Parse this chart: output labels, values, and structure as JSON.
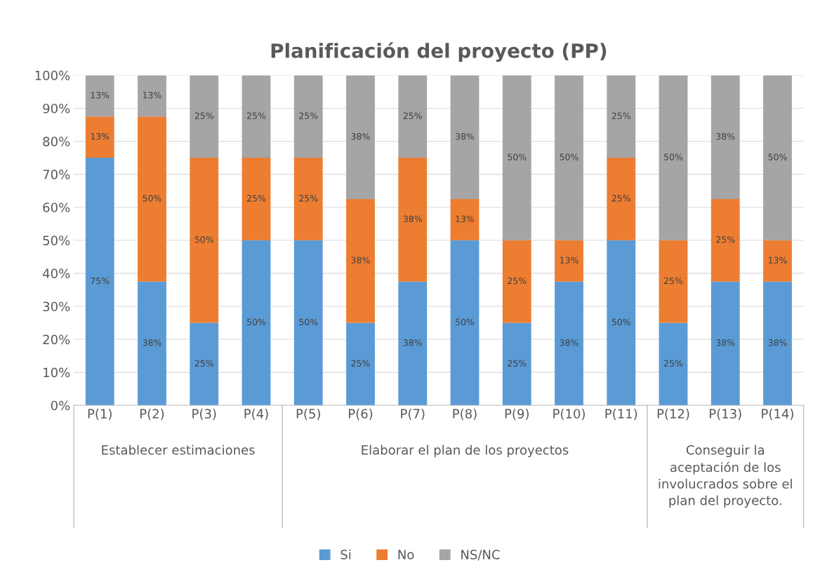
{
  "chart_data": {
    "type": "bar",
    "title": "Planificación del proyecto (PP)",
    "stacked": true,
    "categories": [
      "P(1)",
      "P(2)",
      "P(3)",
      "P(4)",
      "P(5)",
      "P(6)",
      "P(7)",
      "P(8)",
      "P(9)",
      "P(10)",
      "P(11)",
      "P(12)",
      "P(13)",
      "P(14)"
    ],
    "series": [
      {
        "name": "Si",
        "color": "#5b9bd5",
        "values": [
          75,
          37.5,
          25,
          50,
          50,
          25,
          37.5,
          50,
          25,
          37.5,
          50,
          25,
          37.5,
          37.5
        ],
        "value_labels": [
          "75%",
          "38%",
          "25%",
          "50%",
          "50%",
          "25%",
          "38%",
          "50%",
          "25%",
          "38%",
          "50%",
          "25%",
          "38%",
          "38%"
        ]
      },
      {
        "name": "No",
        "color": "#ed7d31",
        "values": [
          12.5,
          50,
          50,
          25,
          25,
          37.5,
          37.5,
          12.5,
          25,
          12.5,
          25,
          25,
          25,
          12.5
        ],
        "value_labels": [
          "13%",
          "50%",
          "50%",
          "25%",
          "25%",
          "38%",
          "38%",
          "13%",
          "25%",
          "13%",
          "25%",
          "25%",
          "25%",
          "13%"
        ]
      },
      {
        "name": "NS/NC",
        "color": "#a5a5a5",
        "values": [
          12.5,
          12.5,
          25,
          25,
          25,
          37.5,
          25,
          37.5,
          50,
          50,
          25,
          50,
          37.5,
          50
        ],
        "value_labels": [
          "13%",
          "13%",
          "25%",
          "25%",
          "25%",
          "38%",
          "25%",
          "38%",
          "50%",
          "50%",
          "25%",
          "50%",
          "38%",
          "50%"
        ]
      }
    ],
    "ylim": [
      0,
      100
    ],
    "yticks": [
      {
        "value": 0,
        "label": "0%"
      },
      {
        "value": 10,
        "label": "10%"
      },
      {
        "value": 20,
        "label": "20%"
      },
      {
        "value": 30,
        "label": "30%"
      },
      {
        "value": 40,
        "label": "40%"
      },
      {
        "value": 50,
        "label": "50%"
      },
      {
        "value": 60,
        "label": "60%"
      },
      {
        "value": 70,
        "label": "70%"
      },
      {
        "value": 80,
        "label": "80%"
      },
      {
        "value": 90,
        "label": "90%"
      },
      {
        "value": 100,
        "label": "100%"
      }
    ],
    "grid": "y",
    "legend": "bottom",
    "annotations": [
      "Establecer estimaciones",
      "Elaborar el plan de los proyectos",
      "Conseguir la\naceptación de los\ninvolucrados sobre el\nplan del proyecto."
    ]
  }
}
